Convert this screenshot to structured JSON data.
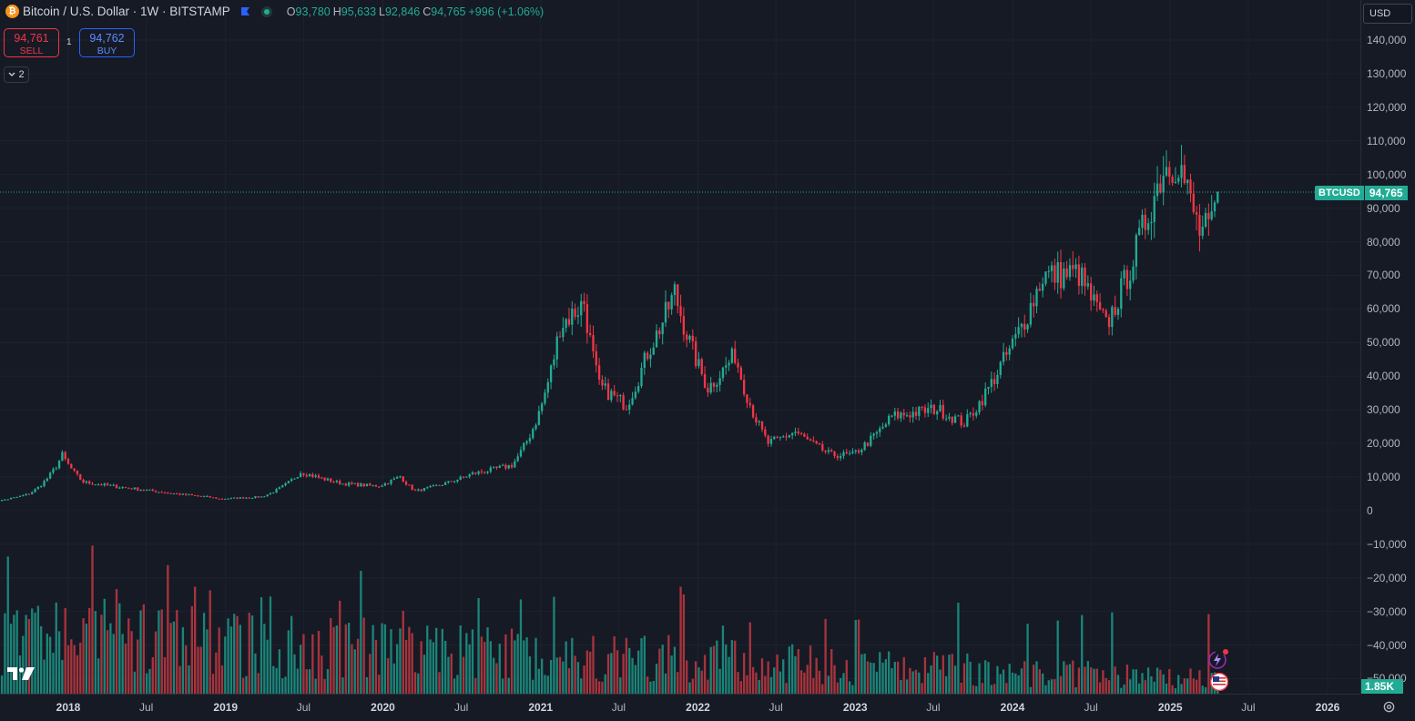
{
  "legend": {
    "symbol_title": "Bitcoin / U.S. Dollar · 1W · BITSTAMP",
    "btc_logo": "₿",
    "ohlc": [
      {
        "label": "O",
        "value": "93,780"
      },
      {
        "label": "H",
        "value": "95,633"
      },
      {
        "label": "L",
        "value": "92,846"
      },
      {
        "label": "C",
        "value": "94,765"
      },
      {
        "label": "",
        "value": "+996 (+1.06%)"
      }
    ]
  },
  "trade": {
    "sell_price": "94,761",
    "sell_label": "SELL",
    "spread": "1",
    "buy_price": "94,762",
    "buy_label": "BUY"
  },
  "indicators_toggle": "2",
  "currency": "USD",
  "last_price_tag": {
    "symbol": "BTCUSD",
    "price": "94,765"
  },
  "volume_tag": "1.85K",
  "colors": {
    "up": "#22ab94",
    "down": "#f23645",
    "up_volume": "#1b8478",
    "down_volume": "#a8343d",
    "background": "#161a25",
    "grid": "#1e222d"
  },
  "icons": [
    "bitcoin-logo-icon",
    "flag-icon",
    "market-status-icon",
    "chevron-down-icon",
    "tradingview-logo-icon",
    "lightning-icon",
    "us-flag-icon",
    "settings-icon"
  ],
  "chart_data": {
    "type": "candlestick",
    "title": "Bitcoin / U.S. Dollar · 1W · BITSTAMP",
    "interval": "1W",
    "ylim": [
      -52000,
      145000
    ],
    "y_ticks": [
      140000,
      130000,
      120000,
      110000,
      100000,
      90000,
      80000,
      70000,
      60000,
      50000,
      40000,
      30000,
      20000,
      10000,
      0,
      -10000,
      -20000,
      -30000,
      -40000,
      -50000
    ],
    "y_tick_labels": [
      "140,000",
      "130,000",
      "120,000",
      "110,000",
      "100,000",
      "90,000",
      "80,000",
      "70,000",
      "60,000",
      "50,000",
      "40,000",
      "30,000",
      "20,000",
      "10,000",
      "0",
      "−10,000",
      "−20,000",
      "−30,000",
      "−40,000",
      "−50,000"
    ],
    "x_ticks": [
      {
        "label": "2018",
        "date": "2018-01-01",
        "year": true
      },
      {
        "label": "Jul",
        "date": "2018-07-01",
        "year": false
      },
      {
        "label": "2019",
        "date": "2019-01-01",
        "year": true
      },
      {
        "label": "Jul",
        "date": "2019-07-01",
        "year": false
      },
      {
        "label": "2020",
        "date": "2020-01-01",
        "year": true
      },
      {
        "label": "Jul",
        "date": "2020-07-01",
        "year": false
      },
      {
        "label": "2021",
        "date": "2021-01-01",
        "year": true
      },
      {
        "label": "Jul",
        "date": "2021-07-01",
        "year": false
      },
      {
        "label": "2022",
        "date": "2022-01-01",
        "year": true
      },
      {
        "label": "Jul",
        "date": "2022-07-01",
        "year": false
      },
      {
        "label": "2023",
        "date": "2023-01-01",
        "year": true
      },
      {
        "label": "Jul",
        "date": "2023-07-01",
        "year": false
      },
      {
        "label": "2024",
        "date": "2024-01-01",
        "year": true
      },
      {
        "label": "Jul",
        "date": "2024-07-01",
        "year": false
      },
      {
        "label": "2025",
        "date": "2025-01-01",
        "year": true
      },
      {
        "label": "Jul",
        "date": "2025-07-01",
        "year": false
      },
      {
        "label": "2026",
        "date": "2026-01-01",
        "year": true
      }
    ],
    "last_close": 94765,
    "key_closes": [
      {
        "date": "2017-07-03",
        "close": 2500
      },
      {
        "date": "2017-10-02",
        "close": 5000
      },
      {
        "date": "2017-12-18",
        "close": 16500
      },
      {
        "date": "2018-02-05",
        "close": 8500
      },
      {
        "date": "2018-06-25",
        "close": 6200
      },
      {
        "date": "2018-11-26",
        "close": 4000
      },
      {
        "date": "2018-12-17",
        "close": 3500
      },
      {
        "date": "2019-03-25",
        "close": 4100
      },
      {
        "date": "2019-06-24",
        "close": 11500
      },
      {
        "date": "2019-09-30",
        "close": 8000
      },
      {
        "date": "2019-12-23",
        "close": 7300
      },
      {
        "date": "2020-02-10",
        "close": 10200
      },
      {
        "date": "2020-03-16",
        "close": 5800
      },
      {
        "date": "2020-07-27",
        "close": 11000
      },
      {
        "date": "2020-10-26",
        "close": 13500
      },
      {
        "date": "2020-12-28",
        "close": 29000
      },
      {
        "date": "2021-02-15",
        "close": 55000
      },
      {
        "date": "2021-04-12",
        "close": 62000
      },
      {
        "date": "2021-05-17",
        "close": 37000
      },
      {
        "date": "2021-07-19",
        "close": 31500
      },
      {
        "date": "2021-09-06",
        "close": 47000
      },
      {
        "date": "2021-11-08",
        "close": 65000
      },
      {
        "date": "2022-01-24",
        "close": 36500
      },
      {
        "date": "2022-03-28",
        "close": 46500
      },
      {
        "date": "2022-06-13",
        "close": 20000
      },
      {
        "date": "2022-08-15",
        "close": 23500
      },
      {
        "date": "2022-11-07",
        "close": 16500
      },
      {
        "date": "2022-12-26",
        "close": 16600
      },
      {
        "date": "2023-03-27",
        "close": 28000
      },
      {
        "date": "2023-07-10",
        "close": 30300
      },
      {
        "date": "2023-09-11",
        "close": 26000
      },
      {
        "date": "2023-12-04",
        "close": 43000
      },
      {
        "date": "2024-03-11",
        "close": 70000
      },
      {
        "date": "2024-06-03",
        "close": 70500
      },
      {
        "date": "2024-08-05",
        "close": 55000
      },
      {
        "date": "2024-11-11",
        "close": 89000
      },
      {
        "date": "2024-12-16",
        "close": 102000
      },
      {
        "date": "2025-01-20",
        "close": 104500
      },
      {
        "date": "2025-03-10",
        "close": 83000
      },
      {
        "date": "2025-04-07",
        "close": 84000
      },
      {
        "date": "2025-04-21",
        "close": 94765
      }
    ]
  }
}
